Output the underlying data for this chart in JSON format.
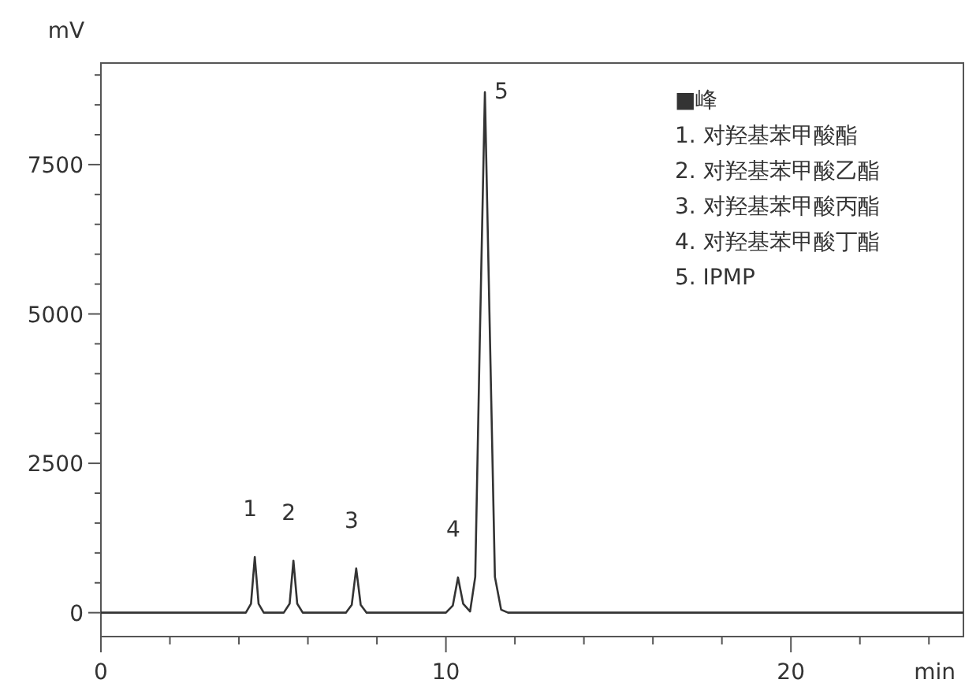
{
  "chart_data": {
    "type": "line",
    "xlabel": "min",
    "ylabel": "mV",
    "xlim": [
      0,
      25
    ],
    "ylim": [
      -400,
      9200
    ],
    "xticks": [
      0,
      {
        "value": 2,
        "label": null
      },
      {
        "value": 4,
        "label": null
      },
      {
        "value": 6,
        "label": null
      },
      {
        "value": 8,
        "label": null
      },
      10,
      {
        "value": 12,
        "label": null
      },
      {
        "value": 14,
        "label": null
      },
      {
        "value": 16,
        "label": null
      },
      {
        "value": 18,
        "label": null
      },
      20,
      {
        "value": 22,
        "label": null
      },
      {
        "value": 24,
        "label": null
      }
    ],
    "yticks": [
      0,
      {
        "value": 500,
        "label": null
      },
      {
        "value": 1000,
        "label": null
      },
      {
        "value": 1500,
        "label": null
      },
      {
        "value": 2000,
        "label": null
      },
      2500,
      {
        "value": 3000,
        "label": null
      },
      {
        "value": 3500,
        "label": null
      },
      {
        "value": 4000,
        "label": null
      },
      {
        "value": 4500,
        "label": null
      },
      5000,
      {
        "value": 5500,
        "label": null
      },
      {
        "value": 6000,
        "label": null
      },
      {
        "value": 6500,
        "label": null
      },
      {
        "value": 7000,
        "label": null
      },
      7500,
      {
        "value": 8000,
        "label": null
      },
      {
        "value": 8500,
        "label": null
      },
      {
        "value": 9000,
        "label": null
      }
    ],
    "grid": false,
    "series": [
      {
        "color": "#333333",
        "x": [
          0,
          4.2,
          4.35,
          4.46,
          4.57,
          4.72,
          5.3,
          5.47,
          5.58,
          5.69,
          5.85,
          7.1,
          7.27,
          7.4,
          7.53,
          7.7,
          10.0,
          10.2,
          10.35,
          10.5,
          10.7,
          10.85,
          10.98,
          11.13,
          11.28,
          11.42,
          11.6,
          11.8,
          25
        ],
        "values": [
          0,
          0,
          150,
          930,
          150,
          0,
          0,
          150,
          870,
          150,
          0,
          0,
          130,
          740,
          130,
          0,
          0,
          120,
          590,
          150,
          20,
          600,
          4500,
          8710,
          4500,
          600,
          50,
          0,
          0
        ]
      }
    ],
    "annotations": [
      {
        "text": "1",
        "x": 4.46,
        "y": 930
      },
      {
        "text": "2",
        "x": 5.58,
        "y": 870
      },
      {
        "text": "3",
        "x": 7.4,
        "y": 740
      },
      {
        "text": "4",
        "x": 10.35,
        "y": 590
      },
      {
        "text": "5",
        "x": 11.13,
        "y": 8710
      },
      "■峰",
      "1. 对羟基苯甲酸酯",
      "2. 对羟基苯甲酸乙酯",
      "3. 对羟基苯甲酸丙酯",
      "4. 对羟基苯甲酸丁酯",
      "5. IPMP"
    ]
  }
}
